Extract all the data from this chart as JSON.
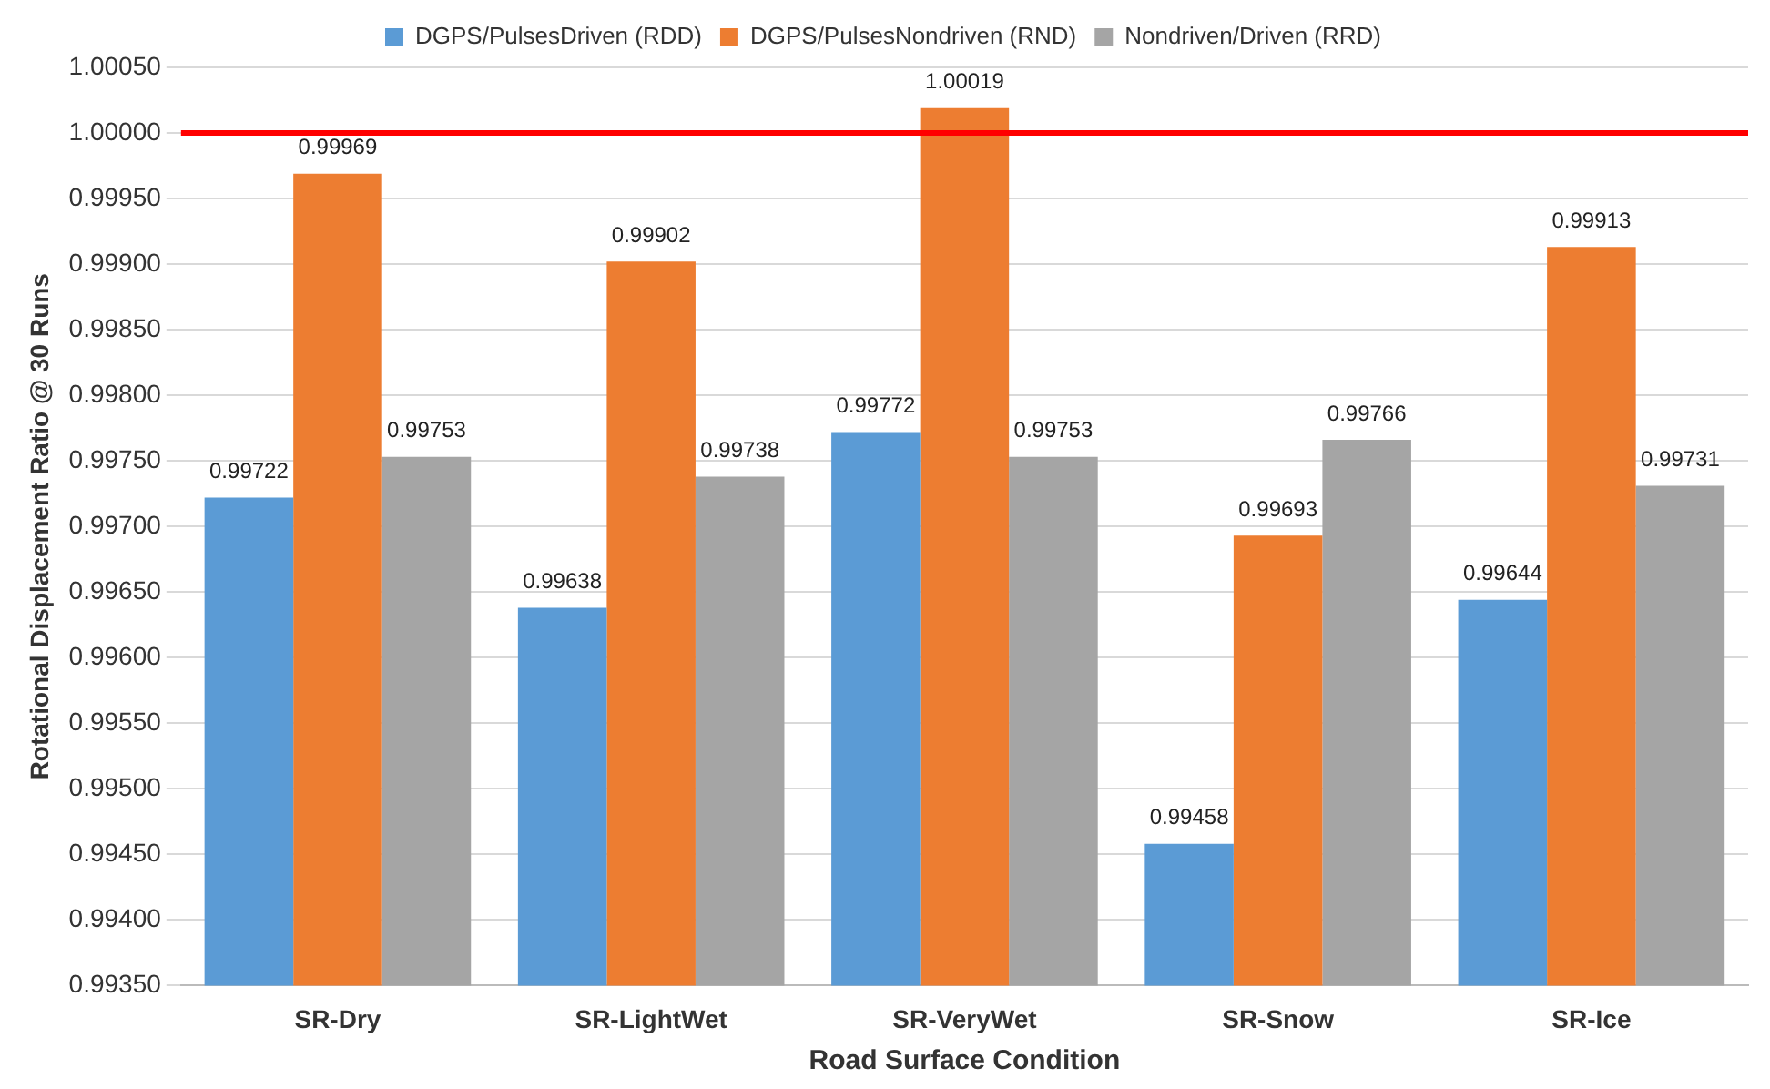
{
  "chart_data": {
    "type": "bar",
    "xlabel": "Road Surface Condition",
    "ylabel": "Rotational Displacement Ratio @ 30 Runs",
    "categories": [
      "SR-Dry",
      "SR-LightWet",
      "SR-VeryWet",
      "SR-Snow",
      "SR-Ice"
    ],
    "series": [
      {
        "name": "DGPS/PulsesDriven (RDD)",
        "color": "#5b9bd5",
        "values": [
          0.99722,
          0.99638,
          0.99772,
          0.99458,
          0.99644
        ]
      },
      {
        "name": "DGPS/PulsesNondriven (RND)",
        "color": "#ed7d31",
        "values": [
          0.99969,
          0.99902,
          1.00019,
          0.99693,
          0.99913
        ]
      },
      {
        "name": "Nondriven/Driven (RRD)",
        "color": "#a5a5a5",
        "values": [
          0.99753,
          0.99738,
          0.99753,
          0.99766,
          0.99731
        ]
      }
    ],
    "ylim": [
      0.9935,
      1.0005
    ],
    "yticks": [
      {
        "value": 0.9935,
        "label": "0.99350"
      },
      {
        "value": 0.994,
        "label": "0.99400"
      },
      {
        "value": 0.9945,
        "label": "0.99450"
      },
      {
        "value": 0.995,
        "label": "0.99500"
      },
      {
        "value": 0.9955,
        "label": "0.99550"
      },
      {
        "value": 0.996,
        "label": "0.99600"
      },
      {
        "value": 0.9965,
        "label": "0.99650"
      },
      {
        "value": 0.997,
        "label": "0.99700"
      },
      {
        "value": 0.9975,
        "label": "0.99750"
      },
      {
        "value": 0.998,
        "label": "0.99800"
      },
      {
        "value": 0.9985,
        "label": "0.99850"
      },
      {
        "value": 0.999,
        "label": "0.99900"
      },
      {
        "value": 0.9995,
        "label": "0.99950"
      },
      {
        "value": 1.0,
        "label": "1.00000"
      },
      {
        "value": 1.0005,
        "label": "1.00050"
      }
    ],
    "ref_lines": [
      {
        "axis": "y",
        "value": 1.0,
        "color": "#ff0000"
      }
    ],
    "grid": "y",
    "legend": "top",
    "data_labels": true
  }
}
